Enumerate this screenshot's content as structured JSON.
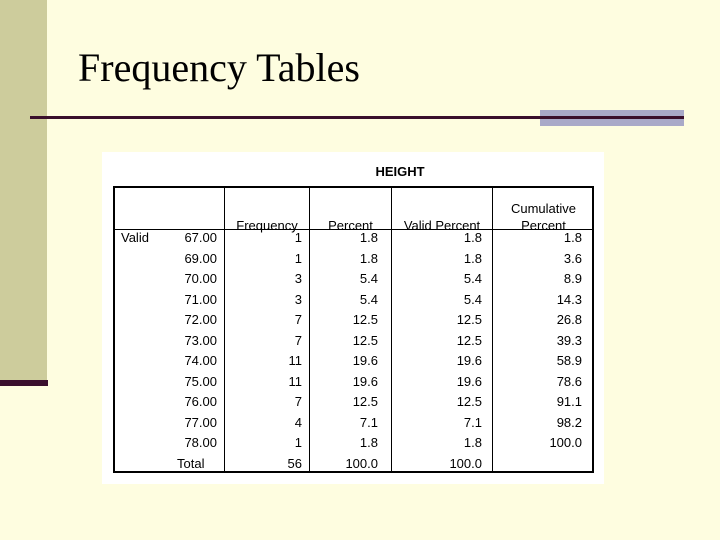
{
  "slide": {
    "title": "Frequency Tables"
  },
  "table": {
    "title": "HEIGHT",
    "headers": {
      "frequency": "Frequency",
      "percent": "Percent",
      "valid_percent": "Valid Percent",
      "cumulative_line1": "Cumulative",
      "cumulative_line2": "Percent"
    },
    "group_label": "Valid",
    "rows": [
      {
        "value": "67.00",
        "frequency": "1",
        "percent": "1.8",
        "valid_percent": "1.8",
        "cumulative": "1.8"
      },
      {
        "value": "69.00",
        "frequency": "1",
        "percent": "1.8",
        "valid_percent": "1.8",
        "cumulative": "3.6"
      },
      {
        "value": "70.00",
        "frequency": "3",
        "percent": "5.4",
        "valid_percent": "5.4",
        "cumulative": "8.9"
      },
      {
        "value": "71.00",
        "frequency": "3",
        "percent": "5.4",
        "valid_percent": "5.4",
        "cumulative": "14.3"
      },
      {
        "value": "72.00",
        "frequency": "7",
        "percent": "12.5",
        "valid_percent": "12.5",
        "cumulative": "26.8"
      },
      {
        "value": "73.00",
        "frequency": "7",
        "percent": "12.5",
        "valid_percent": "12.5",
        "cumulative": "39.3"
      },
      {
        "value": "74.00",
        "frequency": "11",
        "percent": "19.6",
        "valid_percent": "19.6",
        "cumulative": "58.9"
      },
      {
        "value": "75.00",
        "frequency": "11",
        "percent": "19.6",
        "valid_percent": "19.6",
        "cumulative": "78.6"
      },
      {
        "value": "76.00",
        "frequency": "7",
        "percent": "12.5",
        "valid_percent": "12.5",
        "cumulative": "91.1"
      },
      {
        "value": "77.00",
        "frequency": "4",
        "percent": "7.1",
        "valid_percent": "7.1",
        "cumulative": "98.2"
      },
      {
        "value": "78.00",
        "frequency": "1",
        "percent": "1.8",
        "valid_percent": "1.8",
        "cumulative": "100.0"
      },
      {
        "value": "Total",
        "frequency": "56",
        "percent": "100.0",
        "valid_percent": "100.0",
        "cumulative": ""
      }
    ]
  },
  "colors": {
    "background": "#fefde0",
    "sidebar": "#cdcc9c",
    "accent_dark": "#3a0f2c",
    "accent_light": "#a9a9c8"
  }
}
